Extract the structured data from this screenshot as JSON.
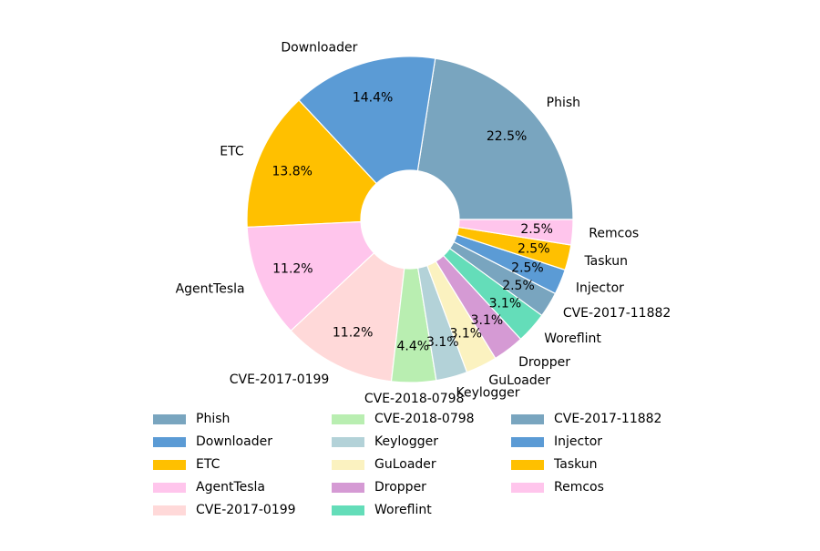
{
  "chart_data": {
    "type": "pie",
    "donut": true,
    "start_angle_deg": 0,
    "direction": "counterclockwise",
    "slices": [
      {
        "label": "Phish",
        "value": 22.5,
        "pct_label": "22.5%",
        "color": "#79A5BF"
      },
      {
        "label": "Downloader",
        "value": 14.4,
        "pct_label": "14.4%",
        "color": "#5B9BD5"
      },
      {
        "label": "ETC",
        "value": 13.8,
        "pct_label": "13.8%",
        "color": "#FFC000"
      },
      {
        "label": "AgentTesla",
        "value": 11.2,
        "pct_label": "11.2%",
        "color": "#FFC5EC"
      },
      {
        "label": "CVE-2017-0199",
        "value": 11.2,
        "pct_label": "11.2%",
        "color": "#FFD9D9"
      },
      {
        "label": "CVE-2018-0798",
        "value": 4.4,
        "pct_label": "4.4%",
        "color": "#B9EEB1"
      },
      {
        "label": "Keylogger",
        "value": 3.1,
        "pct_label": "3.1%",
        "color": "#B3D2D8"
      },
      {
        "label": "GuLoader",
        "value": 3.1,
        "pct_label": "3.1%",
        "color": "#FBF2C0"
      },
      {
        "label": "Dropper",
        "value": 3.1,
        "pct_label": "3.1%",
        "color": "#D59AD4"
      },
      {
        "label": "Woreflint",
        "value": 3.1,
        "pct_label": "3.1%",
        "color": "#64DDB9"
      },
      {
        "label": "CVE-2017-11882",
        "value": 2.5,
        "pct_label": "2.5%",
        "color": "#79A5BF"
      },
      {
        "label": "Injector",
        "value": 2.5,
        "pct_label": "2.5%",
        "color": "#5B9BD5"
      },
      {
        "label": "Taskun",
        "value": 2.5,
        "pct_label": "2.5%",
        "color": "#FFC000"
      },
      {
        "label": "Remcos",
        "value": 2.5,
        "pct_label": "2.5%",
        "color": "#FFC5EC"
      }
    ],
    "legend": {
      "placement": "bottom-center",
      "columns": 3,
      "entries": [
        "Phish",
        "Downloader",
        "ETC",
        "AgentTesla",
        "CVE-2017-0199",
        "CVE-2018-0798",
        "Keylogger",
        "GuLoader",
        "Dropper",
        "Woreflint",
        "CVE-2017-11882",
        "Injector",
        "Taskun",
        "Remcos"
      ]
    },
    "title": "",
    "xlabel": "",
    "ylabel": ""
  }
}
